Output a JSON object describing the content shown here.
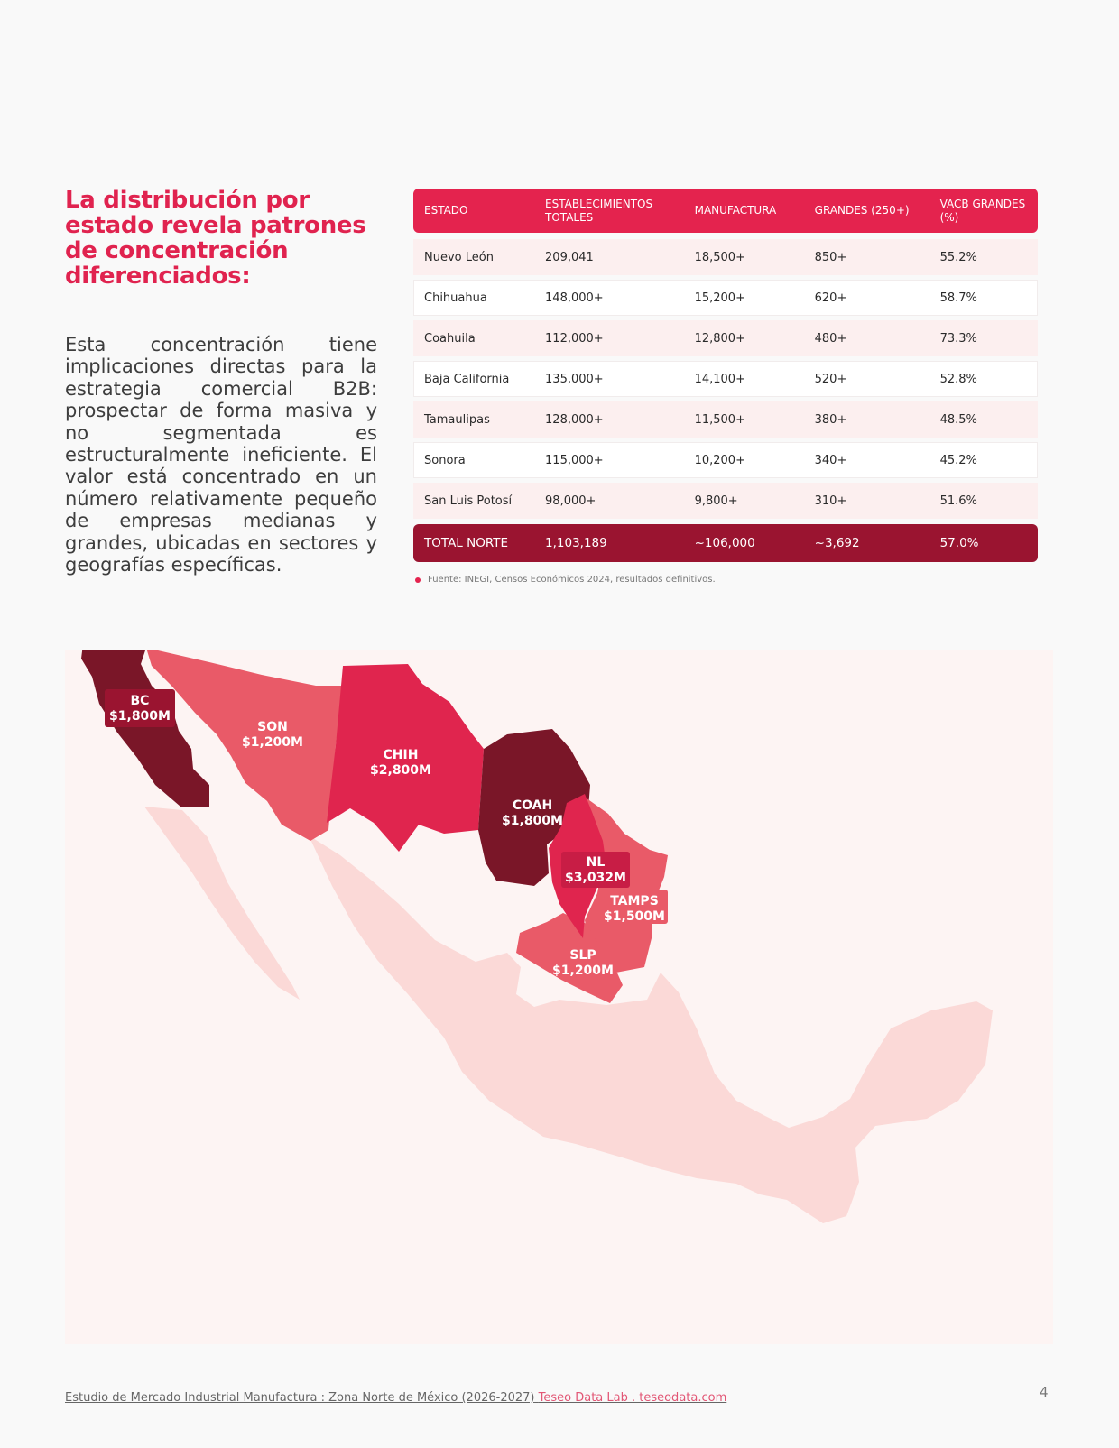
{
  "heading": "La distribución por estado revela patrones de concentración diferenciados:",
  "body": "Esta concentración tiene implicaciones directas para la estrategia comercial B2B: prospectar de forma masiva y no segmentada es estructuralmente ineficiente. El valor está concentrado en un número relativamente pequeño de empresas medianas y grandes, ubicadas en sectores y geografías específicas.",
  "table": {
    "headers": [
      "ESTADO",
      "ESTABLECIMIENTOS\nTOTALES",
      "MANUFACTURA",
      "GRANDES (250+)",
      "VACB GRANDES\n(%)"
    ],
    "rows": [
      [
        "Nuevo León",
        "209,041",
        "18,500+",
        "850+",
        "55.2%"
      ],
      [
        "Chihuahua",
        "148,000+",
        "15,200+",
        "620+",
        "58.7%"
      ],
      [
        "Coahuila",
        "112,000+",
        "12,800+",
        "480+",
        "73.3%"
      ],
      [
        "Baja California",
        "135,000+",
        "14,100+",
        "520+",
        "52.8%"
      ],
      [
        "Tamaulipas",
        "128,000+",
        "11,500+",
        "380+",
        "48.5%"
      ],
      [
        "Sonora",
        "115,000+",
        "10,200+",
        "340+",
        "45.2%"
      ],
      [
        "San Luis Potosí",
        "98,000+",
        "9,800+",
        "310+",
        "51.6%"
      ]
    ],
    "total": [
      "TOTAL NORTE",
      "1,103,189",
      "~106,000",
      "~3,692",
      "57.0%"
    ],
    "source": "Fuente: INEGI, Censos Económicos 2024, resultados definitivos."
  },
  "map": {
    "labels": [
      {
        "code": "BC",
        "value": "$1,800M"
      },
      {
        "code": "SON",
        "value": "$1,200M"
      },
      {
        "code": "CHIH",
        "value": "$2,800M"
      },
      {
        "code": "COAH",
        "value": "$1,800M"
      },
      {
        "code": "NL",
        "value": "$3,032M"
      },
      {
        "code": "TAMPS",
        "value": "$1,500M"
      },
      {
        "code": "SLP",
        "value": "$1,200M"
      }
    ],
    "colors": {
      "dark": "#7a1628",
      "red": "#e0254e",
      "medium": "#e95a68",
      "light": "#fbd9d7",
      "panel": "#fdf4f3"
    }
  },
  "footer": {
    "text": "Estudio de Mercado Industrial Manufactura : Zona Norte de México (2026-2027)",
    "brand": "Teseo Data Lab .  teseodata.com"
  },
  "page_number": "4"
}
